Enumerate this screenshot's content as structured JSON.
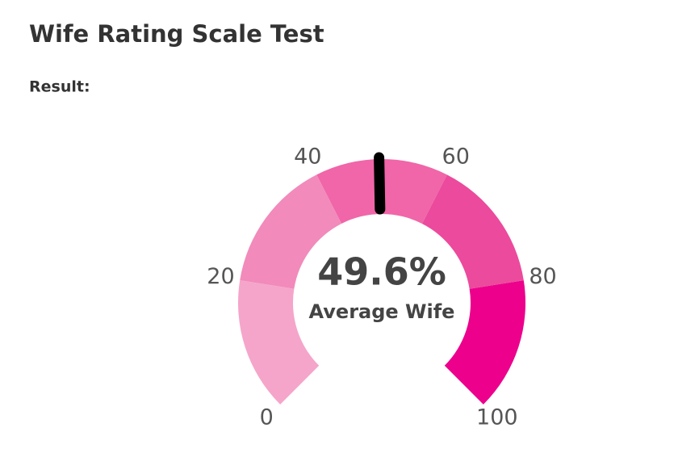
{
  "chart_data": {
    "type": "gauge",
    "title": "Wife Rating Scale Test",
    "subtitle": "Result:",
    "value": 49.6,
    "value_label": "49.6%",
    "label": "Average Wife",
    "ylim": [
      0,
      100
    ],
    "yticks": [
      0,
      20,
      40,
      60,
      80,
      100
    ],
    "band_colors": [
      "#f5a5ca",
      "#f28abb",
      "#f066a8",
      "#ec4a9c",
      "#ec008c"
    ],
    "needle_color": "#000000"
  }
}
